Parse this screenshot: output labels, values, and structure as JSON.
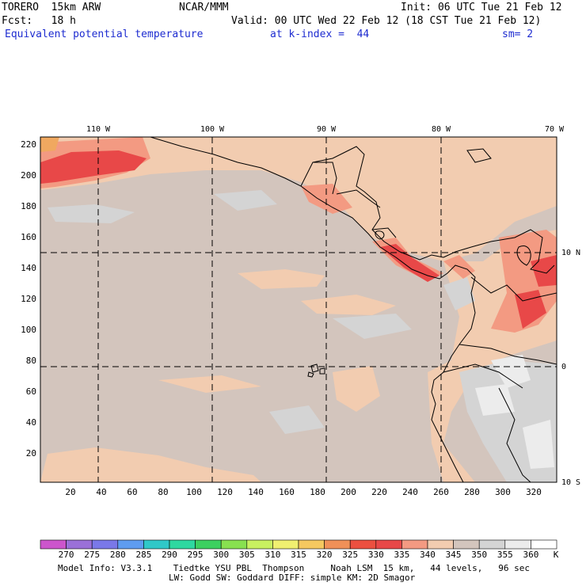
{
  "header": {
    "model": "TORERO  15km ARW",
    "org": "NCAR/MMM",
    "init": "Init: 06 UTC Tue 21 Feb 12",
    "fcst": "Fcst:   18 h",
    "valid": "Valid: 00 UTC Wed 22 Feb 12 (18 CST Tue 21 Feb 12)",
    "field": "Equivalent potential temperature",
    "level": "at k-index =  44",
    "smooth": "sm= 2"
  },
  "map": {
    "lon_labels": [
      "110 W",
      "100 W",
      "90 W",
      "80 W",
      "70 W"
    ],
    "lat_labels": [
      "10 N",
      "0",
      "10 S"
    ],
    "y_ticks": [
      "220",
      "200",
      "180",
      "160",
      "140",
      "120",
      "100",
      "80",
      "60",
      "40",
      "20"
    ],
    "x_ticks": [
      "20",
      "40",
      "60",
      "80",
      "100",
      "120",
      "140",
      "160",
      "180",
      "200",
      "220",
      "240",
      "260",
      "280",
      "300",
      "320"
    ]
  },
  "colorbar": {
    "labels": [
      "270",
      "275",
      "280",
      "285",
      "290",
      "295",
      "300",
      "305",
      "310",
      "315",
      "320",
      "325",
      "330",
      "335",
      "340",
      "345",
      "350",
      "355",
      "360"
    ],
    "unit": "K",
    "colors": [
      "#cc55cc",
      "#9a70d8",
      "#7a78e8",
      "#5e9cf0",
      "#30c8c8",
      "#2ed8a0",
      "#3cd060",
      "#88e050",
      "#c8f060",
      "#f0f070",
      "#f5c860",
      "#f09058",
      "#ec5040",
      "#e84848",
      "#f39a82",
      "#f2ccb0",
      "#d3c5bd",
      "#d4d4d4",
      "#ececec",
      "#ffffff"
    ]
  },
  "footer": {
    "line1": "Model Info: V3.3.1    Tiedtke YSU PBL  Thompson     Noah LSM  15 km,   44 levels,   96 sec",
    "line2": "LW: Godd SW: Goddard DIFF: simple KM: 2D Smagor"
  }
}
